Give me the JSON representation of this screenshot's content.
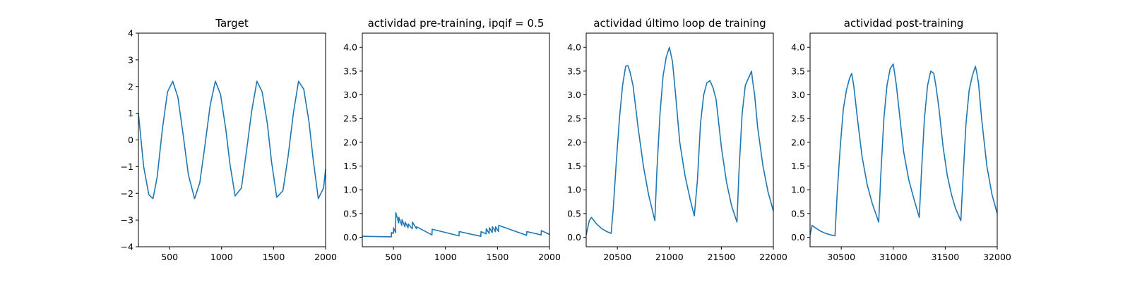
{
  "chart_data": [
    {
      "type": "line",
      "title": "Target",
      "xlim": [
        200,
        2000
      ],
      "ylim": [
        -4,
        4
      ],
      "xticks": [
        500,
        1000,
        1500,
        2000
      ],
      "yticks": [
        -4,
        -3,
        -2,
        -1,
        0,
        1,
        2,
        3,
        4
      ],
      "x": [
        200,
        250,
        300,
        340,
        380,
        430,
        480,
        530,
        580,
        630,
        680,
        740,
        790,
        840,
        890,
        940,
        990,
        1040,
        1080,
        1130,
        1190,
        1240,
        1290,
        1340,
        1390,
        1440,
        1480,
        1530,
        1590,
        1640,
        1690,
        1740,
        1790,
        1840,
        1880,
        1930,
        1980,
        2000
      ],
      "y": [
        1.0,
        -1.0,
        -2.05,
        -2.2,
        -1.4,
        0.4,
        1.8,
        2.2,
        1.6,
        0.2,
        -1.3,
        -2.2,
        -1.6,
        -0.2,
        1.3,
        2.2,
        1.7,
        0.4,
        -0.9,
        -2.1,
        -1.8,
        -0.4,
        1.1,
        2.2,
        1.8,
        0.6,
        -0.8,
        -2.15,
        -1.9,
        -0.6,
        1.0,
        2.2,
        1.9,
        0.7,
        -0.7,
        -2.2,
        -1.8,
        -1.1
      ]
    },
    {
      "type": "line",
      "title": "actividad pre-training, ipqif = 0.5",
      "xlim": [
        200,
        2000
      ],
      "ylim": [
        -0.2,
        4.3
      ],
      "xticks": [
        500,
        1000,
        1500,
        2000
      ],
      "yticks": [
        0.0,
        0.5,
        1.0,
        1.5,
        2.0,
        2.5,
        3.0,
        3.5,
        4.0
      ],
      "x": [
        200,
        480,
        480,
        500,
        500,
        520,
        522,
        550,
        552,
        580,
        582,
        610,
        612,
        640,
        642,
        680,
        682,
        720,
        722,
        870,
        872,
        1130,
        1132,
        1340,
        1342,
        1390,
        1392,
        1420,
        1422,
        1450,
        1452,
        1480,
        1482,
        1510,
        1512,
        1780,
        1782,
        1920,
        1922,
        2000
      ],
      "y": [
        0.02,
        0.01,
        0.1,
        0.08,
        0.2,
        0.1,
        0.52,
        0.3,
        0.42,
        0.25,
        0.37,
        0.22,
        0.32,
        0.2,
        0.28,
        0.18,
        0.32,
        0.18,
        0.22,
        0.05,
        0.17,
        0.03,
        0.12,
        0.02,
        0.12,
        0.07,
        0.18,
        0.08,
        0.2,
        0.1,
        0.22,
        0.12,
        0.22,
        0.12,
        0.25,
        0.04,
        0.12,
        0.05,
        0.14,
        0.06
      ]
    },
    {
      "type": "line",
      "title": "actividad último loop de training",
      "xlim": [
        20200,
        22000
      ],
      "ylim": [
        -0.2,
        4.3
      ],
      "xticks": [
        20500,
        21000,
        21500,
        22000
      ],
      "yticks": [
        0.0,
        0.5,
        1.0,
        1.5,
        2.0,
        2.5,
        3.0,
        3.5,
        4.0
      ],
      "x": [
        20200,
        20230,
        20250,
        20300,
        20350,
        20400,
        20440,
        20460,
        20490,
        20520,
        20550,
        20580,
        20600,
        20620,
        20650,
        20700,
        20750,
        20800,
        20860,
        20880,
        20910,
        20940,
        20970,
        21000,
        21010,
        21030,
        21060,
        21100,
        21150,
        21200,
        21240,
        21270,
        21300,
        21330,
        21360,
        21390,
        21420,
        21450,
        21500,
        21550,
        21600,
        21650,
        21670,
        21700,
        21730,
        21760,
        21790,
        21800,
        21820,
        21850,
        21900,
        21950,
        22000
      ],
      "y": [
        0.05,
        0.35,
        0.42,
        0.28,
        0.18,
        0.12,
        0.08,
        0.6,
        1.6,
        2.5,
        3.2,
        3.6,
        3.62,
        3.5,
        3.2,
        2.3,
        1.5,
        0.9,
        0.35,
        1.4,
        2.6,
        3.4,
        3.8,
        4.0,
        3.9,
        3.7,
        3.0,
        2.0,
        1.3,
        0.8,
        0.45,
        1.2,
        2.4,
        3.0,
        3.25,
        3.3,
        3.15,
        2.9,
        1.9,
        1.15,
        0.65,
        0.32,
        1.4,
        2.6,
        3.2,
        3.35,
        3.5,
        3.3,
        3.0,
        2.3,
        1.5,
        0.95,
        0.55
      ]
    },
    {
      "type": "line",
      "title": "actividad post-training",
      "xlim": [
        30200,
        32000
      ],
      "ylim": [
        -0.2,
        4.3
      ],
      "xticks": [
        30500,
        31000,
        31500,
        32000
      ],
      "yticks": [
        0.0,
        0.5,
        1.0,
        1.5,
        2.0,
        2.5,
        3.0,
        3.5,
        4.0
      ],
      "x": [
        30200,
        30220,
        30250,
        30300,
        30350,
        30400,
        30440,
        30460,
        30490,
        30520,
        30550,
        30580,
        30600,
        30620,
        30650,
        30700,
        30750,
        30800,
        30860,
        30880,
        30910,
        30940,
        30970,
        31000,
        31010,
        31030,
        31060,
        31100,
        31150,
        31200,
        31250,
        31270,
        31300,
        31330,
        31360,
        31390,
        31410,
        31440,
        31480,
        31520,
        31560,
        31600,
        31650,
        31670,
        31700,
        31730,
        31760,
        31790,
        31800,
        31820,
        31850,
        31900,
        31950,
        32000
      ],
      "y": [
        0.05,
        0.25,
        0.2,
        0.13,
        0.08,
        0.05,
        0.03,
        0.9,
        1.9,
        2.7,
        3.1,
        3.35,
        3.45,
        3.2,
        2.6,
        1.7,
        1.1,
        0.7,
        0.32,
        1.3,
        2.5,
        3.2,
        3.55,
        3.65,
        3.5,
        3.2,
        2.6,
        1.8,
        1.2,
        0.8,
        0.42,
        1.3,
        2.5,
        3.2,
        3.5,
        3.45,
        3.2,
        2.7,
        1.9,
        1.3,
        0.9,
        0.6,
        0.35,
        1.2,
        2.4,
        3.1,
        3.4,
        3.6,
        3.5,
        3.25,
        2.5,
        1.5,
        0.9,
        0.5
      ]
    }
  ]
}
